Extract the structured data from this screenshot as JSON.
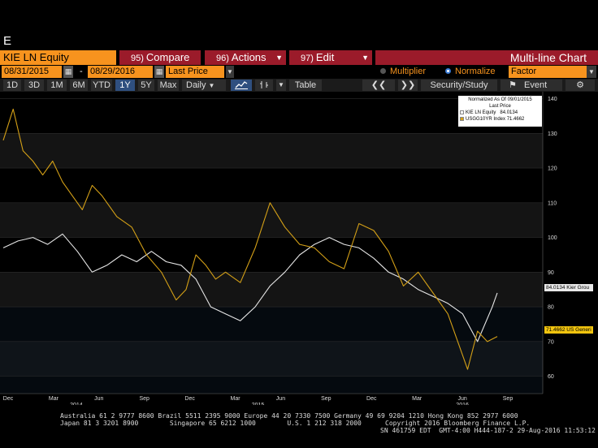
{
  "window": {
    "label": "E"
  },
  "command_bar": {
    "security": "KIE LN Equity",
    "compare": {
      "num": "95)",
      "label": "Compare"
    },
    "actions": {
      "num": "96)",
      "label": "Actions"
    },
    "edit": {
      "num": "97)",
      "label": "Edit"
    },
    "title": "Multi-line Chart"
  },
  "date_row": {
    "start_date": "08/31/2015",
    "end_date": "08/29/2016",
    "field": "Last Price",
    "multiplier_label": "Multiplier",
    "normalize_label": "Normalize",
    "factor_label": "Factor"
  },
  "toolbar": {
    "periods": [
      "1D",
      "3D",
      "1M",
      "6M",
      "YTD",
      "1Y",
      "5Y",
      "Max"
    ],
    "selected_period": "1Y",
    "frequency": "Daily",
    "table_label": "Table",
    "security_study_label": "Security/Study",
    "event_label": "Event"
  },
  "legend": {
    "header1": "Normalized As Of 09/01/2015",
    "header2": "Last Price",
    "items": [
      {
        "name": "KIE LN Equity",
        "value": "84.0134",
        "color": "#e6e6e6"
      },
      {
        "name": "USGG10YR Index",
        "value": "71.4662",
        "color": "#d4a017"
      }
    ]
  },
  "tags": {
    "kie": "84.0134 Kier Grou",
    "usgg": "71.4662 US Generi"
  },
  "colors": {
    "orange": "#f7931e",
    "red": "#9b1b2a",
    "kie_line": "#e6e6e6",
    "usgg_line": "#d4a017"
  },
  "chart_data": {
    "type": "line",
    "ylim": [
      55,
      142
    ],
    "y_ticks": [
      60,
      70,
      80,
      90,
      100,
      110,
      120,
      130,
      140
    ],
    "x_tick_labels": [
      "Dec",
      "Mar",
      "Jun",
      "Sep",
      "Dec",
      "Mar",
      "Jun",
      "Sep",
      "Dec",
      "Mar",
      "Jun",
      "Sep"
    ],
    "year_labels": [
      "2014",
      "2015",
      "2016"
    ],
    "series": [
      {
        "name": "KIE LN Equity",
        "x": [
          0,
          3,
          6,
          9,
          12,
          15,
          18,
          21,
          24,
          27,
          30,
          33,
          36,
          39,
          42,
          45,
          48,
          51,
          54,
          57,
          60,
          63,
          66,
          69,
          72,
          75,
          78,
          81,
          84,
          87,
          90,
          93,
          96,
          99,
          100
        ],
        "values": [
          97,
          99,
          100,
          98,
          101,
          96,
          90,
          92,
          95,
          93,
          96,
          93,
          92,
          88,
          80,
          78,
          76,
          80,
          86,
          90,
          95,
          98,
          100,
          98,
          97,
          94,
          90,
          88,
          85,
          83,
          81,
          78,
          70,
          80,
          84.0134
        ]
      },
      {
        "name": "USGG10YR Index",
        "x": [
          0,
          2,
          4,
          6,
          8,
          10,
          12,
          14,
          16,
          18,
          20,
          23,
          26,
          29,
          32,
          35,
          37,
          39,
          41,
          43,
          45,
          48,
          51,
          54,
          57,
          60,
          63,
          66,
          69,
          72,
          75,
          78,
          81,
          84,
          87,
          90,
          92,
          94,
          96,
          98,
          100
        ],
        "values": [
          128,
          137,
          125,
          122,
          118,
          122,
          116,
          112,
          108,
          115,
          112,
          106,
          103,
          95,
          90,
          82,
          85,
          95,
          92,
          88,
          90,
          87,
          97,
          110,
          103,
          98,
          97,
          93,
          91,
          104,
          102,
          96,
          86,
          90,
          84,
          78,
          70,
          62,
          73,
          70,
          71.4662
        ]
      }
    ]
  },
  "footer": {
    "line1": "Australia 61 2 9777 8600 Brazil 5511 2395 9000 Europe 44 20 7330 7500 Germany 49 69 9204 1210 Hong Kong 852 2977 6000",
    "line2a": "Japan 81 3 3201 8900        Singapore 65 6212 1000        U.S. 1 212 318 2000",
    "line2b": "Copyright 2016 Bloomberg Finance L.P.",
    "line3": "SN 461759 EDT  GMT-4:00 H444-187-2 29-Aug-2016 11:53:12"
  }
}
